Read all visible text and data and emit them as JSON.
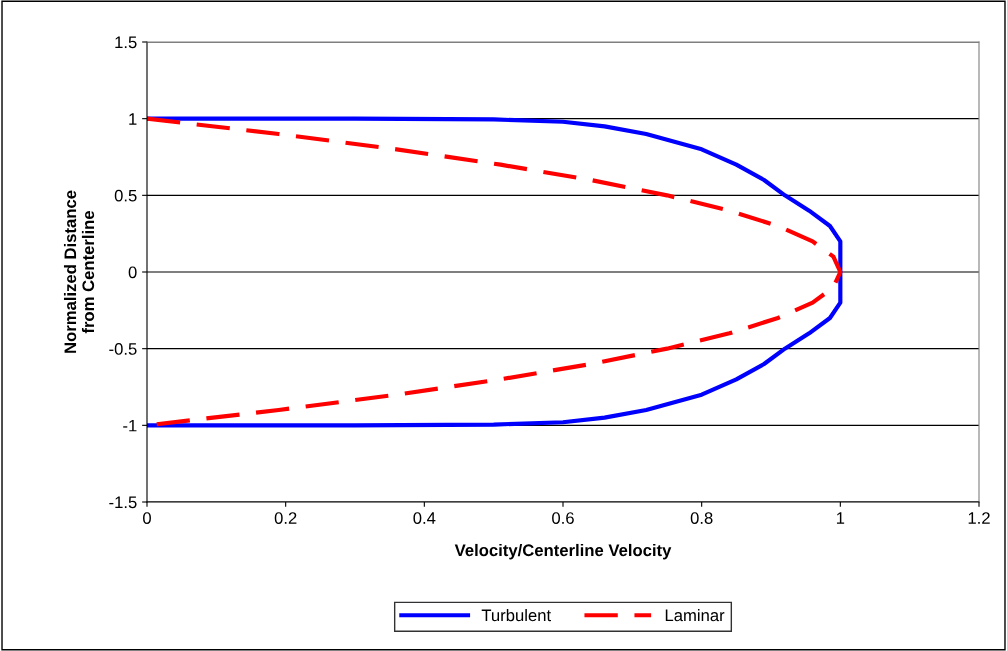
{
  "chart_data": {
    "type": "line",
    "xlabel": "Velocity/Centerline Velocity",
    "ylabel": "Normalized Distance\nfrom Centerline",
    "xlim": [
      0,
      1.2
    ],
    "xticks": [
      0,
      0.2,
      0.4,
      0.6,
      0.8,
      1,
      1.2
    ],
    "ylim": [
      -1.5,
      1.5
    ],
    "yticks": [
      -1.5,
      -1,
      -0.5,
      0,
      0.5,
      1,
      1.5
    ],
    "grid": "y",
    "legend": "bottom",
    "series": [
      {
        "name": "Turbulent",
        "color": "#0000ff",
        "line_style": "solid",
        "x": [
          0,
          0.3,
          0.5,
          0.6,
          0.66,
          0.72,
          0.8,
          0.85,
          0.89,
          0.92,
          0.955,
          0.985,
          1.0,
          1.0,
          0.985,
          0.955,
          0.92,
          0.89,
          0.85,
          0.8,
          0.72,
          0.66,
          0.6,
          0.5,
          0.3,
          0
        ],
        "values": [
          1,
          1,
          0.995,
          0.98,
          0.95,
          0.9,
          0.8,
          0.7,
          0.6,
          0.5,
          0.4,
          0.3,
          0.2,
          -0.2,
          -0.3,
          -0.4,
          -0.5,
          -0.6,
          -0.7,
          -0.8,
          -0.9,
          -0.95,
          -0.98,
          -0.995,
          -1,
          -1
        ]
      },
      {
        "name": "Laminar",
        "color": "#ff0000",
        "line_style": "dashed",
        "x": [
          0,
          0.19,
          0.36,
          0.51,
          0.64,
          0.75,
          0.84,
          0.91,
          0.96,
          0.99,
          1,
          0.99,
          0.96,
          0.91,
          0.84,
          0.75,
          0.64,
          0.51,
          0.36,
          0.19,
          0
        ],
        "values": [
          1,
          0.9,
          0.8,
          0.7,
          0.6,
          0.5,
          0.4,
          0.3,
          0.2,
          0.1,
          0,
          -0.1,
          -0.2,
          -0.3,
          -0.4,
          -0.5,
          -0.6,
          -0.7,
          -0.8,
          -0.9,
          -1
        ]
      }
    ]
  }
}
